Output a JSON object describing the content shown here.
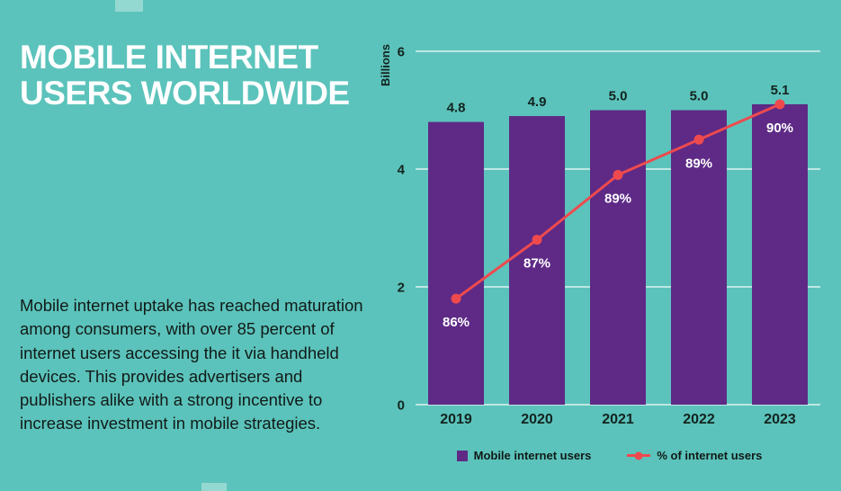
{
  "page": {
    "title_line1": "MOBILE INTERNET",
    "title_line2": "USERS WORLDWIDE",
    "body_text": "Mobile internet uptake has reached maturation among consumers, with over 85 percent of internet users accessing the it via handheld devices. This provides advertisers and publishers alike with a strong incentive to increase investment in mobile strategies."
  },
  "colors": {
    "background": "#5BC3BB",
    "bar": "#5E2A86",
    "line": "#EE4A4E",
    "text_dark": "#13231F",
    "text_light": "#FFFFFF",
    "grid": "rgba(255,255,255,0.6)"
  },
  "chart_data": {
    "type": "bar+line",
    "categories": [
      "2019",
      "2020",
      "2021",
      "2022",
      "2023"
    ],
    "series": [
      {
        "name": "Mobile internet users",
        "type": "bar",
        "unit": "billions",
        "values": [
          4.8,
          4.9,
          5.0,
          5.0,
          5.1
        ],
        "labels": [
          "4.8",
          "4.9",
          "5.0",
          "5.0",
          "5.1"
        ]
      },
      {
        "name": "% of internet users",
        "type": "line",
        "unit": "percent",
        "values": [
          86,
          87,
          89,
          89,
          90
        ],
        "labels": [
          "86%",
          "87%",
          "89%",
          "89%",
          "90%"
        ],
        "plotted_billions": [
          1.8,
          2.8,
          3.9,
          4.5,
          5.1
        ]
      }
    ],
    "ylabel": "Billions",
    "yticks": [
      0,
      2,
      4,
      6
    ],
    "ylim": [
      0,
      6
    ],
    "grid": true,
    "legend_position": "bottom"
  }
}
